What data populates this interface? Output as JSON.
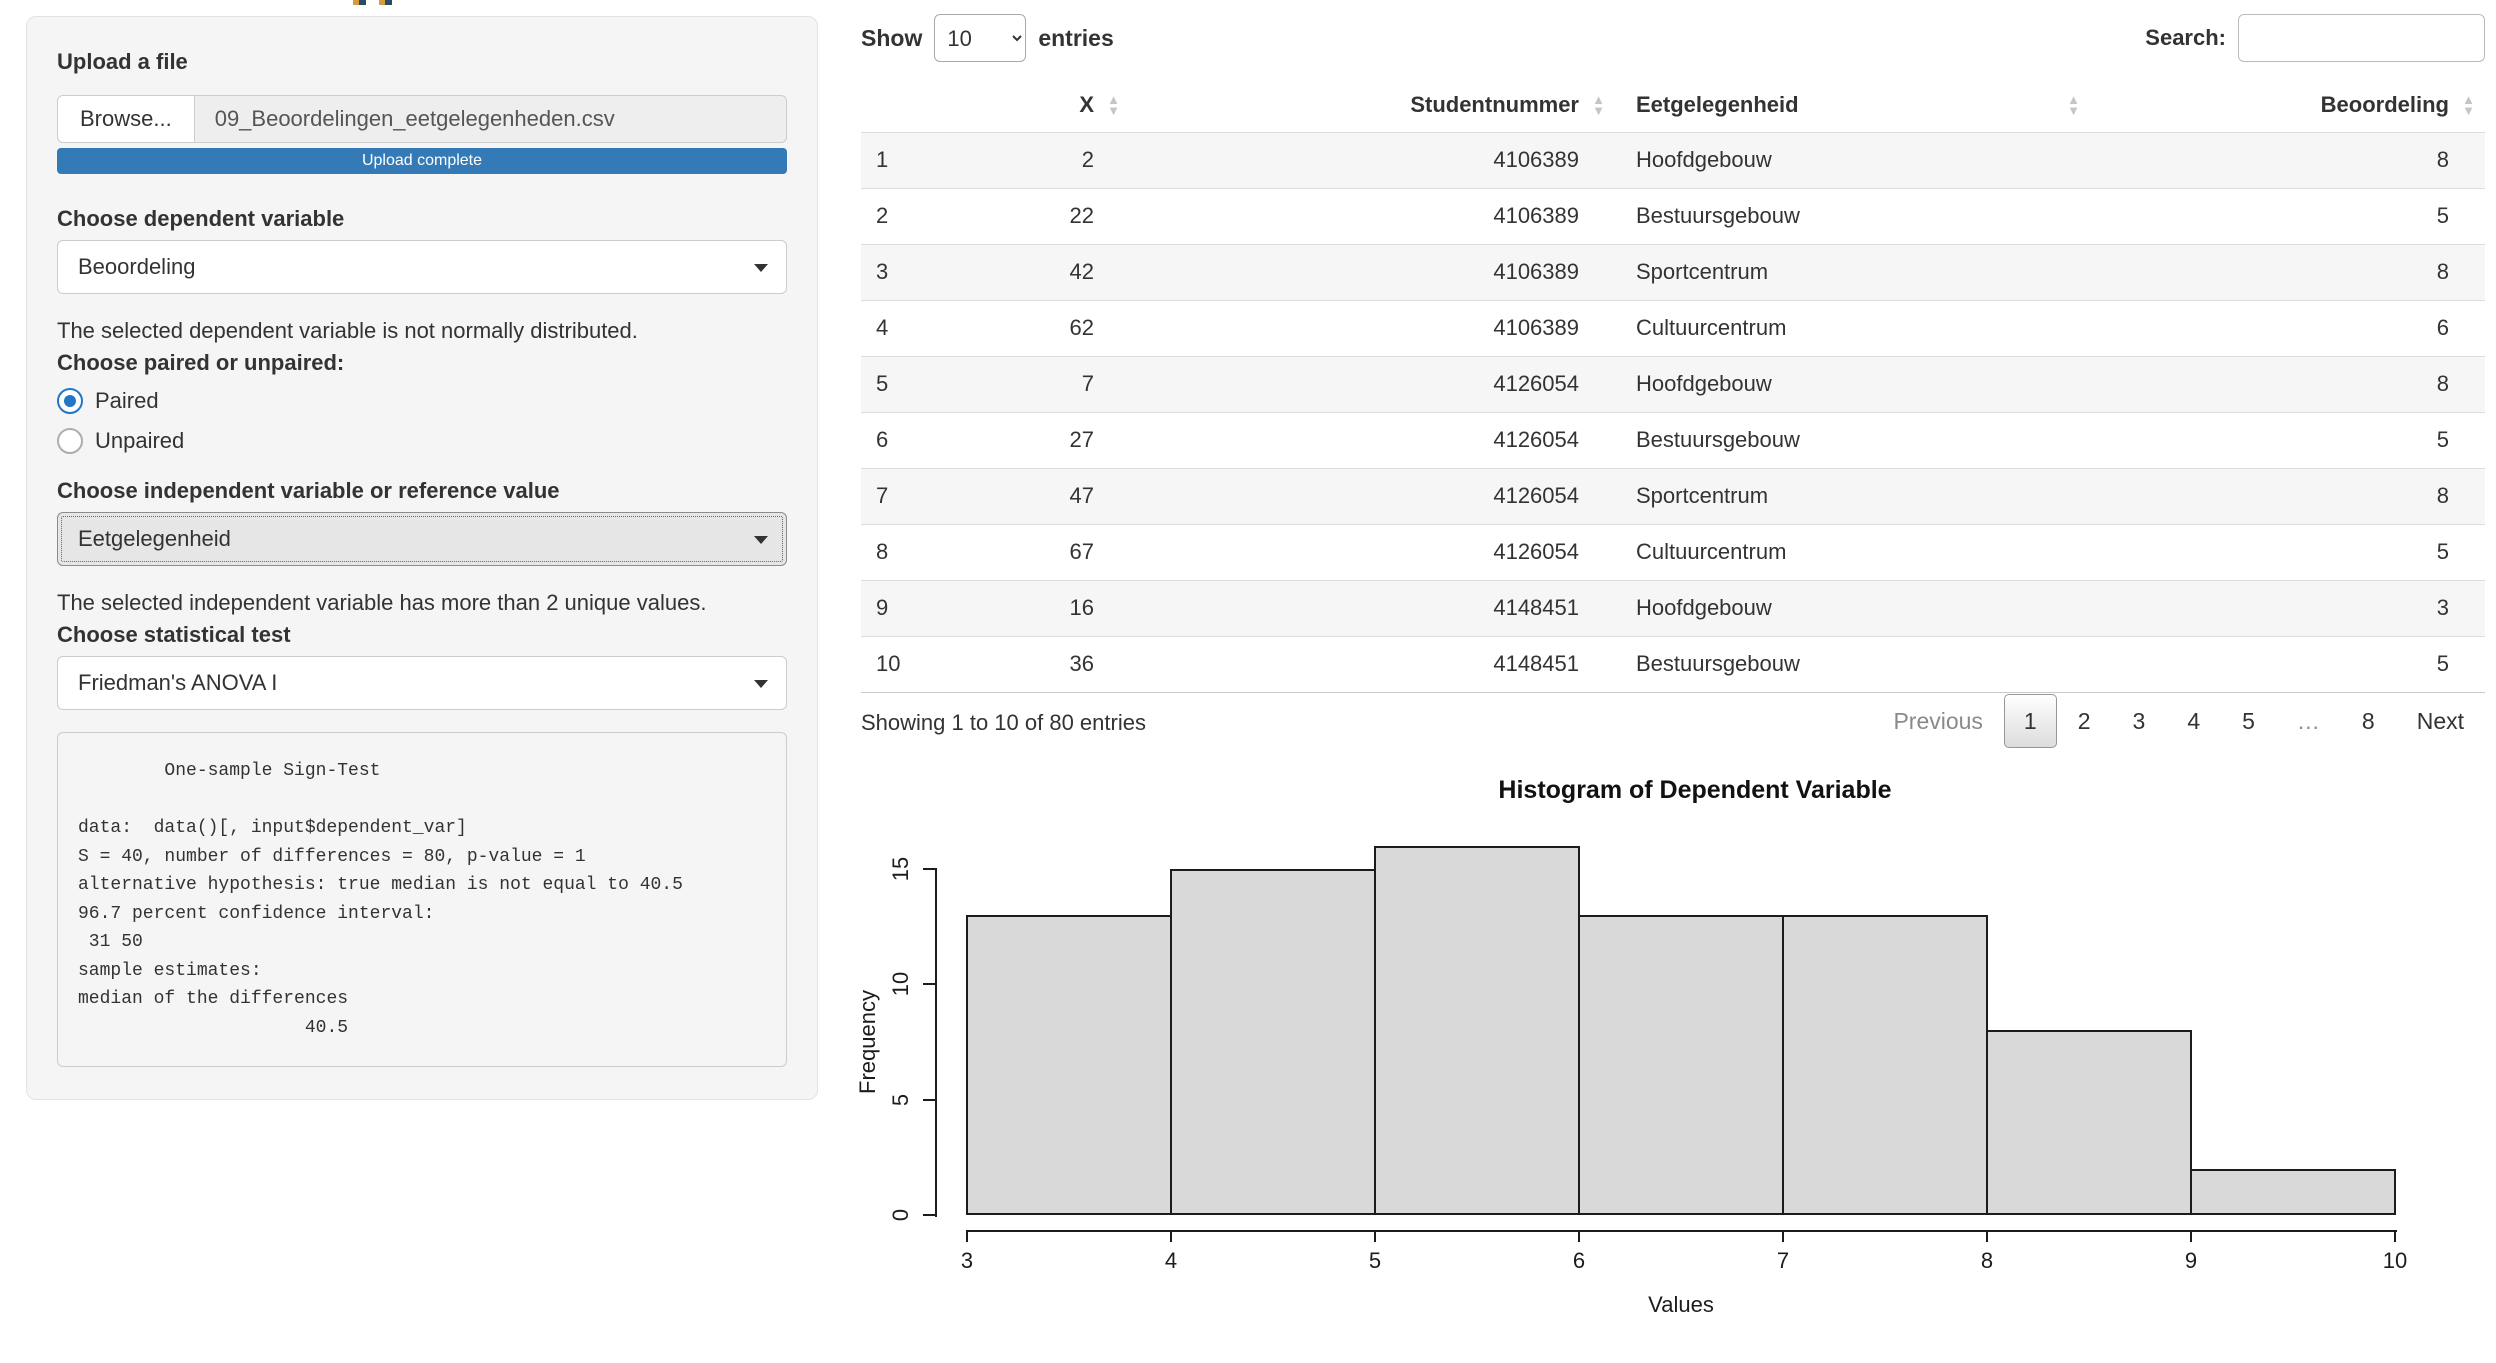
{
  "sidebar": {
    "upload_label": "Upload a file",
    "browse_label": "Browse...",
    "filename": "09_Beoordelingen_eetgelegenheden.csv",
    "upload_status": "Upload complete",
    "dependent_label": "Choose dependent variable",
    "dependent_value": "Beoordeling",
    "normality_note": "The selected dependent variable is not normally distributed.",
    "paired_label": "Choose paired or unpaired:",
    "paired_options": [
      "Paired",
      "Unpaired"
    ],
    "paired_selected": "Paired",
    "independent_label": "Choose independent variable or reference value",
    "independent_value": "Eetgelegenheid",
    "unique_note": "The selected independent variable has more than 2 unique values.",
    "test_label": "Choose statistical test",
    "test_value": "Friedman's ANOVA I",
    "test_output": "        One-sample Sign-Test\n\ndata:  data()[, input$dependent_var]\nS = 40, number of differences = 80, p-value = 1\nalternative hypothesis: true median is not equal to 40.5\n96.7 percent confidence interval:\n 31 50\nsample estimates:\nmedian of the differences\n                     40.5"
  },
  "table": {
    "show_label": "Show",
    "page_length": "10",
    "entries_label": "entries",
    "search_label": "Search:",
    "search_value": "",
    "columns": [
      "",
      "X",
      "Studentnummer",
      "Eetgelegenheid",
      "Beoordeling"
    ],
    "rows": [
      [
        "1",
        "2",
        "4106389",
        "Hoofdgebouw",
        "8"
      ],
      [
        "2",
        "22",
        "4106389",
        "Bestuursgebouw",
        "5"
      ],
      [
        "3",
        "42",
        "4106389",
        "Sportcentrum",
        "8"
      ],
      [
        "4",
        "62",
        "4106389",
        "Cultuurcentrum",
        "6"
      ],
      [
        "5",
        "7",
        "4126054",
        "Hoofdgebouw",
        "8"
      ],
      [
        "6",
        "27",
        "4126054",
        "Bestuursgebouw",
        "5"
      ],
      [
        "7",
        "47",
        "4126054",
        "Sportcentrum",
        "8"
      ],
      [
        "8",
        "67",
        "4126054",
        "Cultuurcentrum",
        "5"
      ],
      [
        "9",
        "16",
        "4148451",
        "Hoofdgebouw",
        "3"
      ],
      [
        "10",
        "36",
        "4148451",
        "Bestuursgebouw",
        "5"
      ]
    ],
    "info": "Showing 1 to 10 of 80 entries",
    "pagination": {
      "previous": "Previous",
      "pages": [
        "1",
        "2",
        "3",
        "4",
        "5",
        "…",
        "8"
      ],
      "active": "1",
      "next": "Next"
    }
  },
  "chart_data": {
    "type": "bar",
    "title": "Histogram of Dependent Variable",
    "xlabel": "Values",
    "ylabel": "Frequency",
    "categories": [
      "3-4",
      "4-5",
      "5-6",
      "6-7",
      "7-8",
      "8-9",
      "9-10"
    ],
    "values": [
      13,
      15,
      16,
      13,
      13,
      8,
      2
    ],
    "bins_start": 3,
    "bin_width": 1,
    "x_ticks": [
      3,
      4,
      5,
      6,
      7,
      8,
      9,
      10
    ],
    "y_ticks": [
      0,
      5,
      10,
      15
    ],
    "xlim": [
      3,
      10
    ],
    "ylim": [
      0,
      16
    ],
    "grid": false,
    "legend": "none",
    "bar_fill": "#d9d9d9",
    "bar_border": "#1c1c1c"
  },
  "colors": {
    "accent_blue": "#337ab7",
    "stripe": "#f6f6f6"
  }
}
